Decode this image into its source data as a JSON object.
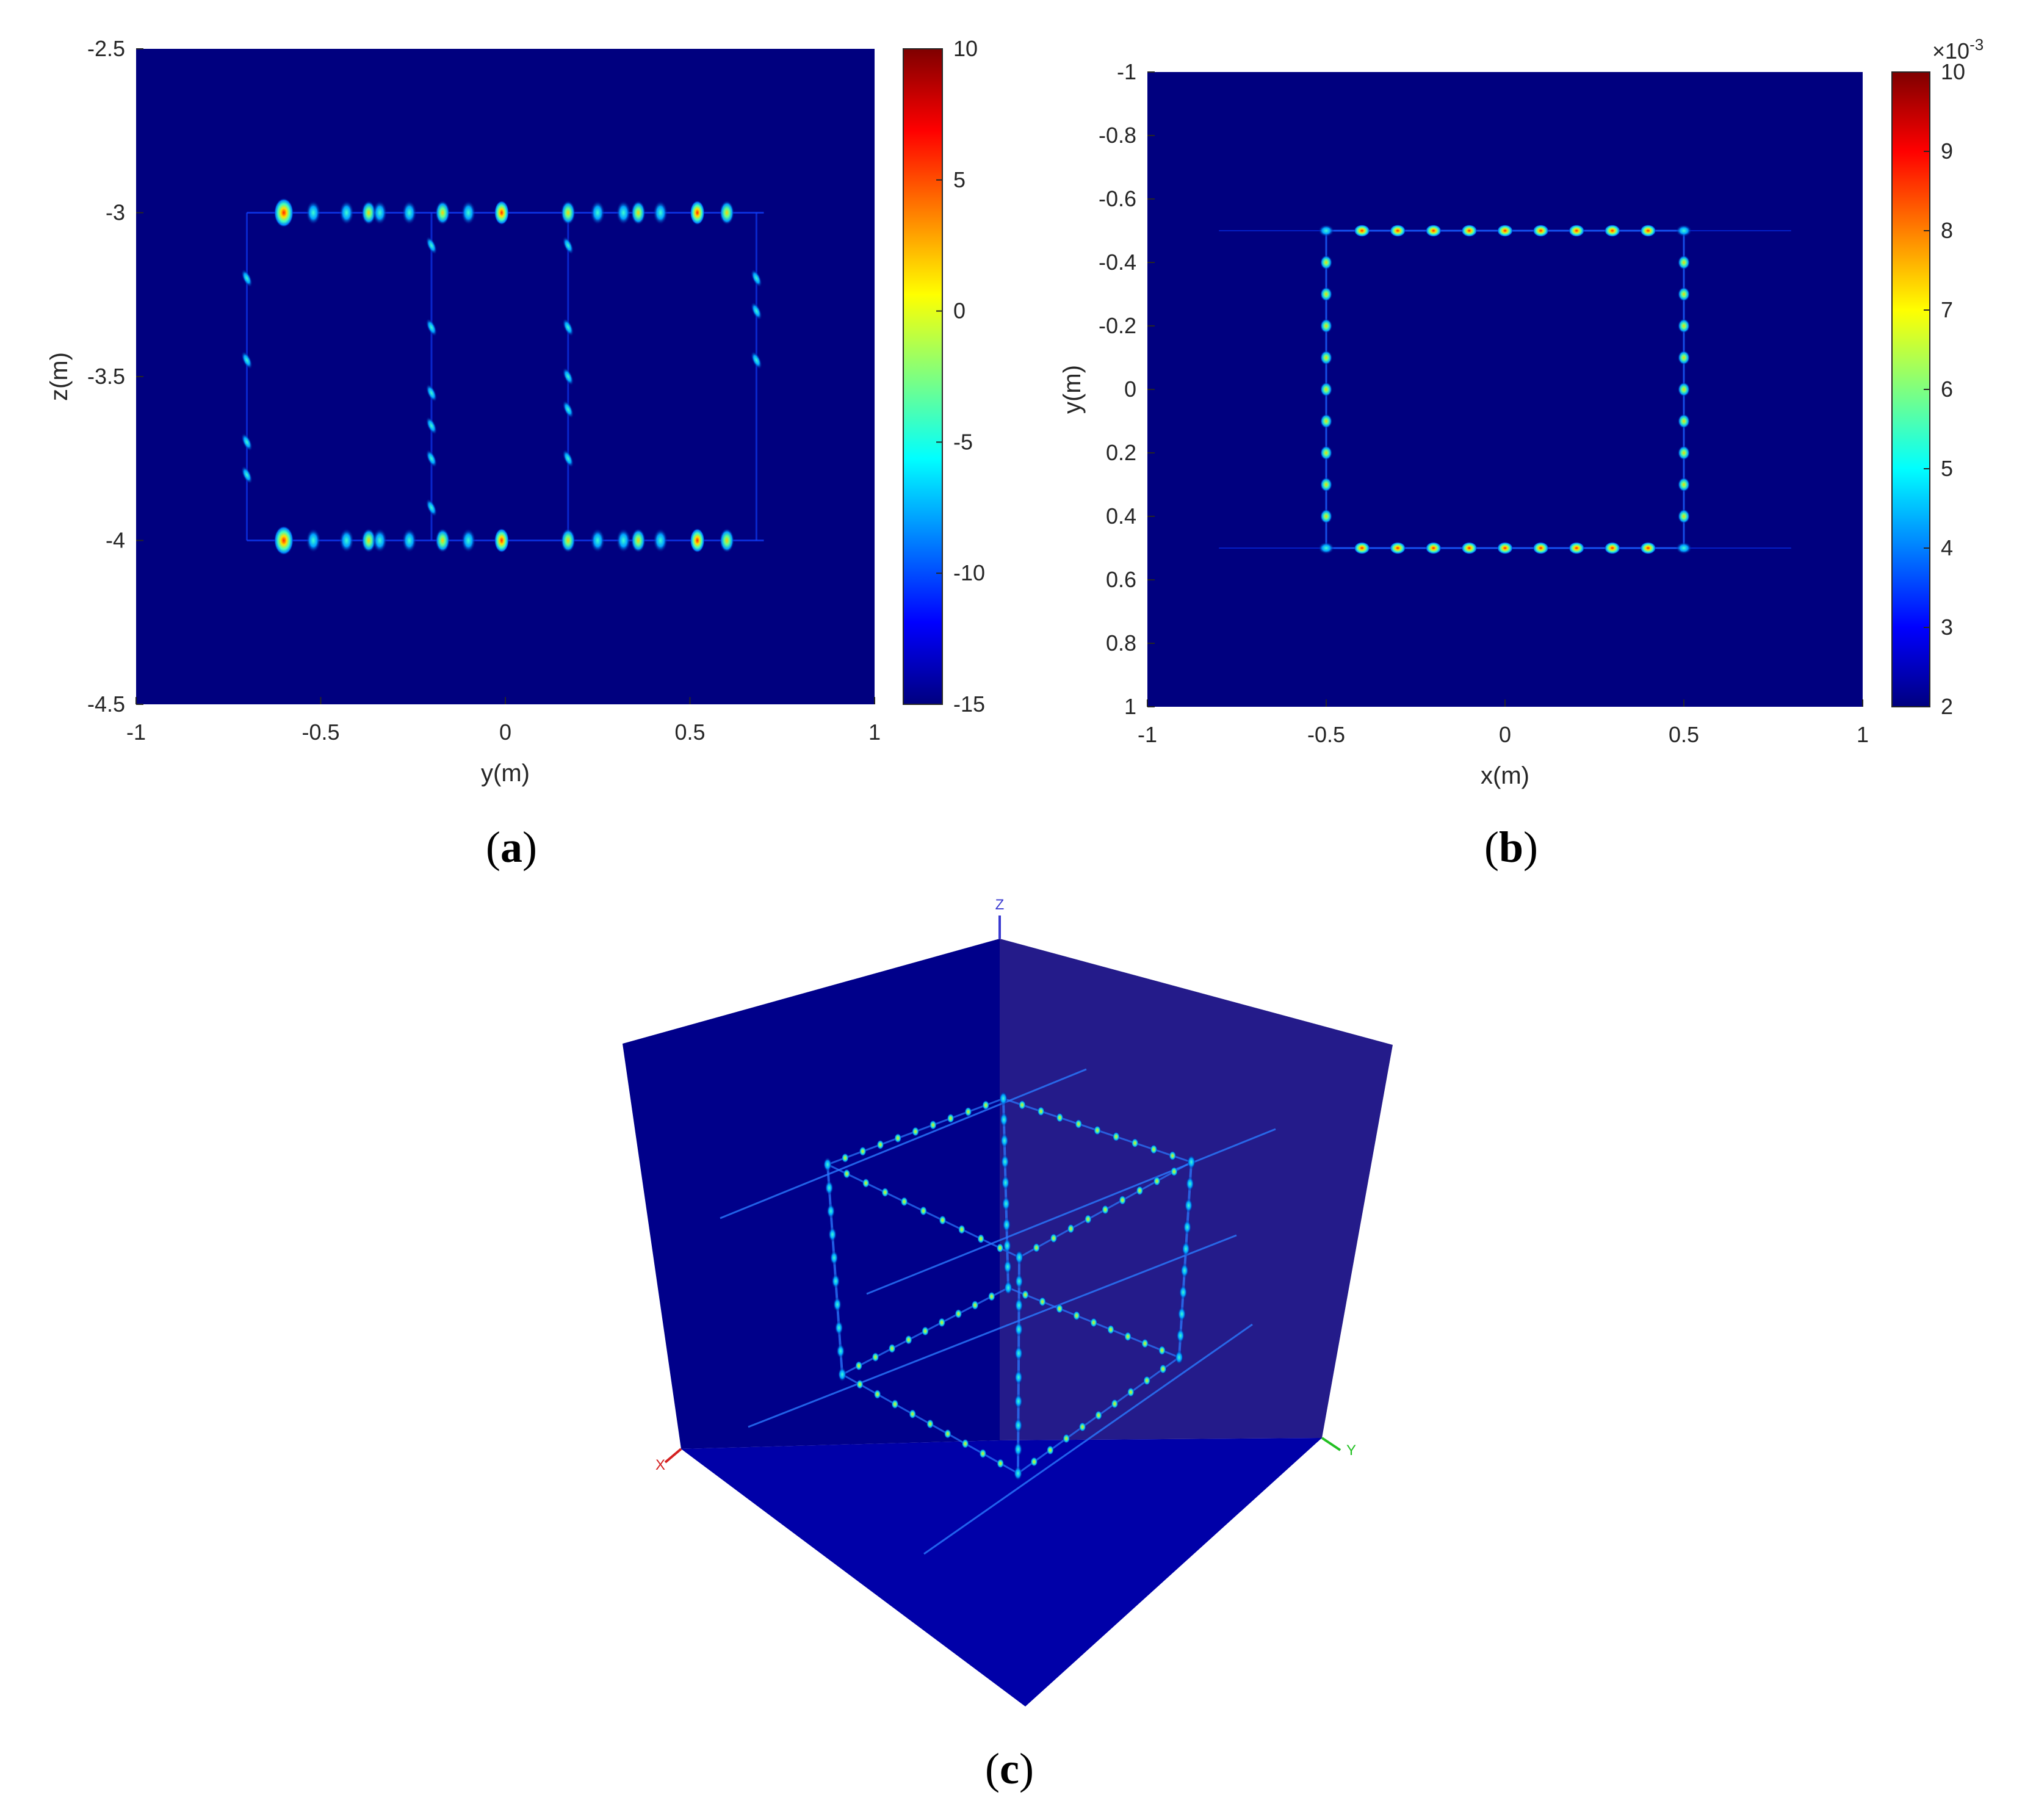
{
  "colors": {
    "background": "#00007f",
    "axis": "#262626"
  },
  "chart_data": [
    {
      "type": "heatmap",
      "panel_label": "(a)",
      "panel_label_bold": "a",
      "xlabel": "y(m)",
      "ylabel": "z(m)",
      "xlim": [
        -1,
        1
      ],
      "ylim": [
        -4.5,
        -2.5
      ],
      "y_reversed": true,
      "xticks": [
        "-1",
        "-0.5",
        "0",
        "0.5",
        "1"
      ],
      "xtick_values": [
        -1,
        -0.5,
        0,
        0.5,
        1
      ],
      "yticks": [
        "-2.5",
        "-3",
        "-3.5",
        "-4",
        "-4.5"
      ],
      "ytick_values": [
        -2.5,
        -3,
        -3.5,
        -4,
        -4.5
      ],
      "colorbar": {
        "range": [
          -15,
          10
        ],
        "ticks": [
          "10",
          "5",
          "0",
          "-5",
          "-10",
          "-15"
        ],
        "tick_values": [
          10,
          5,
          0,
          -5,
          -10,
          -15
        ],
        "exponent": ""
      },
      "features": "two rectangular frames of bright scatter points; horizontal rows at z=-3 and z=-4, vertical columns near y=-0.7, -0.2, 0.17, 0.7",
      "horizontal_rows": [
        {
          "z": -3.0,
          "y": [
            -0.6,
            -0.52,
            -0.43,
            -0.37,
            -0.34,
            -0.26,
            -0.17,
            -0.1,
            -0.01,
            0.17,
            0.25,
            0.32,
            0.36,
            0.42,
            0.52,
            0.6
          ]
        },
        {
          "z": -4.0,
          "y": [
            -0.6,
            -0.52,
            -0.43,
            -0.37,
            -0.34,
            -0.26,
            -0.17,
            -0.1,
            -0.01,
            0.17,
            0.25,
            0.32,
            0.36,
            0.42,
            0.52,
            0.6
          ]
        }
      ],
      "vertical_columns": [
        {
          "y": -0.7,
          "z": [
            -3.2,
            -3.45,
            -3.7,
            -3.8
          ]
        },
        {
          "y": -0.2,
          "z": [
            -3.1,
            -3.35,
            -3.55,
            -3.65,
            -3.75,
            -3.9
          ]
        },
        {
          "y": 0.17,
          "z": [
            -3.1,
            -3.35,
            -3.5,
            -3.6,
            -3.75
          ]
        },
        {
          "y": 0.68,
          "z": [
            -3.2,
            -3.3,
            -3.45
          ]
        }
      ]
    },
    {
      "type": "heatmap",
      "panel_label": "(b)",
      "panel_label_bold": "b",
      "xlabel": "x(m)",
      "ylabel": "y(m)",
      "xlim": [
        -1,
        1
      ],
      "ylim": [
        1,
        -1
      ],
      "y_reversed": true,
      "xticks": [
        "-1",
        "-0.5",
        "0",
        "0.5",
        "1"
      ],
      "xtick_values": [
        -1,
        -0.5,
        0,
        0.5,
        1
      ],
      "yticks": [
        "-1",
        "-0.8",
        "-0.6",
        "-0.4",
        "-0.2",
        "0",
        "0.2",
        "0.4",
        "0.6",
        "0.8",
        "1"
      ],
      "ytick_values": [
        -1,
        -0.8,
        -0.6,
        -0.4,
        -0.2,
        0,
        0.2,
        0.4,
        0.6,
        0.8,
        1
      ],
      "colorbar": {
        "range": [
          2,
          10
        ],
        "ticks": [
          "10",
          "9",
          "8",
          "7",
          "6",
          "5",
          "4",
          "3",
          "2"
        ],
        "tick_values": [
          10,
          9,
          8,
          7,
          6,
          5,
          4,
          3,
          2
        ],
        "exponent": "×10",
        "exponent_power": "-3"
      },
      "features": "square of point scatterers from x=-0.5 to 0.5 and y=-0.5 to 0.5, spaced 0.1 m",
      "square_points": {
        "min": -0.5,
        "max": 0.5,
        "step": 0.1
      }
    },
    {
      "type": "3d-volume",
      "panel_label": "(c)",
      "panel_label_bold": "c",
      "axis_labels": {
        "x": "X",
        "y": "Y",
        "z": "Z"
      },
      "axis_colors": {
        "x": "#d42020",
        "y": "#22c022",
        "z": "#3a3ad0"
      },
      "features": "3D cube rendering showing two square frames of point scatterers connected by vertical lines"
    }
  ]
}
